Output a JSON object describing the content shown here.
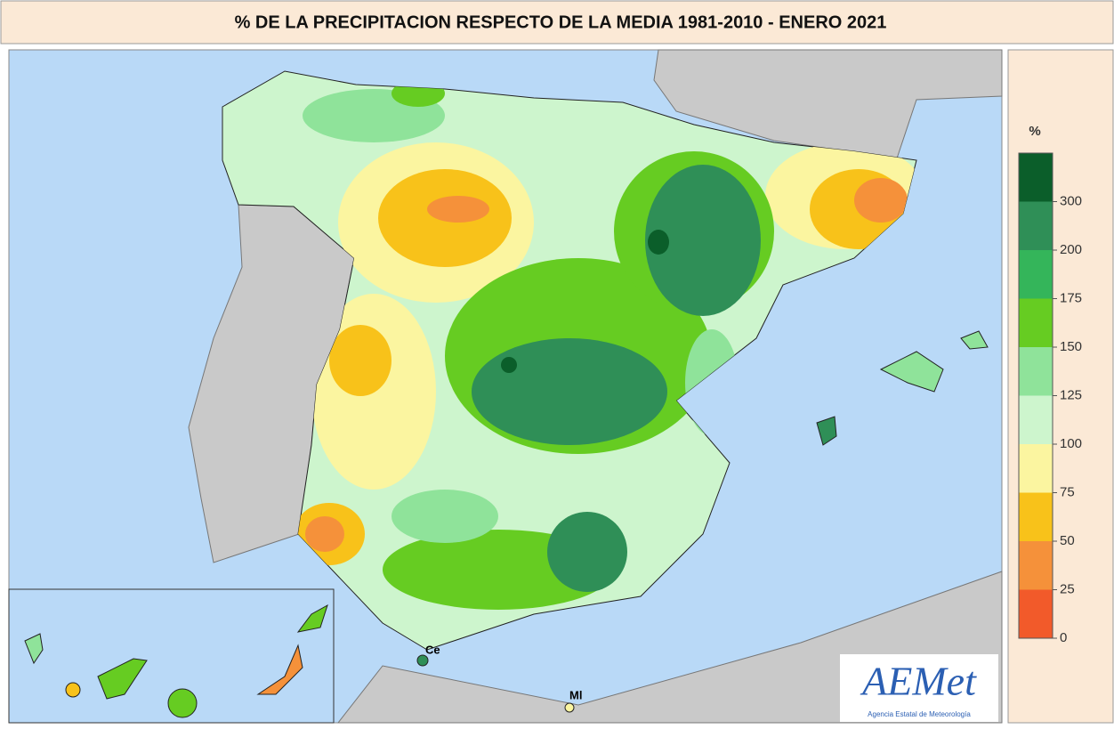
{
  "title": "% DE LA PRECIPITACION RESPECTO DE LA MEDIA 1981-2010 - ENERO 2021",
  "legend": {
    "title": "%",
    "ticks": [
      300,
      200,
      175,
      150,
      125,
      100,
      75,
      50,
      25,
      0
    ],
    "colors": [
      "#0b5e2a",
      "#2f8f57",
      "#34b55a",
      "#66cc22",
      "#8fe39a",
      "#cdf5cd",
      "#fbf5a0",
      "#f8c21a",
      "#f5913a",
      "#f25a2a"
    ]
  },
  "labels": {
    "ceuta": "Ce",
    "melilla": "Ml"
  },
  "logo": {
    "name": "AEMet",
    "subtitle": "Agencia Estatal de Meteorología"
  }
}
